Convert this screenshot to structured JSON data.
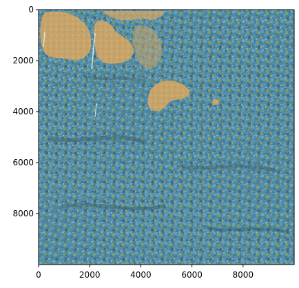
{
  "figure": {
    "image_description": "aerial view of dense forest canopy with tan clearings",
    "image_extent": {
      "x": [
        0,
        10000
      ],
      "y": [
        0,
        10000
      ]
    },
    "x_axis": {
      "ticks": [
        {
          "value": 0,
          "label": "0"
        },
        {
          "value": 2000,
          "label": "2000"
        },
        {
          "value": 4000,
          "label": "4000"
        },
        {
          "value": 6000,
          "label": "6000"
        },
        {
          "value": 8000,
          "label": "8000"
        }
      ]
    },
    "y_axis": {
      "inverted": true,
      "ticks": [
        {
          "value": 0,
          "label": "0"
        },
        {
          "value": 2000,
          "label": "2000"
        },
        {
          "value": 4000,
          "label": "4000"
        },
        {
          "value": 6000,
          "label": "6000"
        },
        {
          "value": 8000,
          "label": "8000"
        }
      ]
    },
    "colors": {
      "canopy_blue": "#4f8fb0",
      "canopy_dark": "#3f6673",
      "canopy_green": "#7a9a62",
      "clearing_tan": "#c9a468"
    }
  }
}
